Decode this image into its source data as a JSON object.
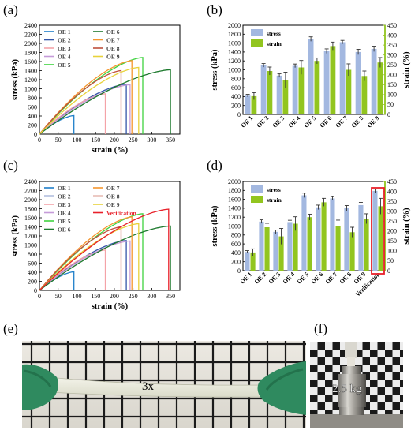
{
  "panels": {
    "a": "(a)",
    "b": "(b)",
    "c": "(c)",
    "d": "(d)",
    "e": "(e)",
    "f": "(f)"
  },
  "photo_e": {
    "label": "3x"
  },
  "photo_f": {
    "label": "2.5 kg"
  },
  "chart_data": [
    {
      "type": "line",
      "panel": "(a)",
      "xlabel": "strain (%)",
      "ylabel": "stress (kPa)",
      "xlim": [
        0,
        375
      ],
      "ylim": [
        0,
        2400
      ],
      "xticks": [
        0,
        50,
        100,
        150,
        200,
        250,
        300,
        350
      ],
      "yticks": [
        0,
        200,
        400,
        600,
        800,
        1000,
        1200,
        1400,
        1600,
        1800,
        2000,
        2200,
        2400
      ],
      "legend_position": "top-left",
      "series": [
        {
          "name": "OE 1",
          "color": "#1f7fc9",
          "break_strain": 92,
          "peak_stress": 410
        },
        {
          "name": "OE 2",
          "color": "#3355a8",
          "break_strain": 232,
          "peak_stress": 1100
        },
        {
          "name": "OE 3",
          "color": "#f4a3a8",
          "break_strain": 176,
          "peak_stress": 890
        },
        {
          "name": "OE 4",
          "color": "#c59bd9",
          "break_strain": 242,
          "peak_stress": 1090
        },
        {
          "name": "OE 5",
          "color": "#3fd33f",
          "break_strain": 276,
          "peak_stress": 1690
        },
        {
          "name": "OE 6",
          "color": "#1e7a2e",
          "break_strain": 350,
          "peak_stress": 1420
        },
        {
          "name": "OE 7",
          "color": "#f5962e",
          "break_strain": 247,
          "peak_stress": 1620
        },
        {
          "name": "OE 8",
          "color": "#c0503c",
          "break_strain": 218,
          "peak_stress": 1400
        },
        {
          "name": "OE 9",
          "color": "#e8d23a",
          "break_strain": 265,
          "peak_stress": 1470
        }
      ]
    },
    {
      "type": "bar",
      "panel": "(b)",
      "categories": [
        "OE 1",
        "OE 2",
        "OE 3",
        "OE 4",
        "OE 5",
        "OE 6",
        "OE 7",
        "OE 8",
        "OE 9"
      ],
      "ylabel": "stress (kPa)",
      "y2label": "strain (%)",
      "ylim": [
        0,
        2000
      ],
      "y2lim": [
        0,
        450
      ],
      "yticks": [
        0,
        200,
        400,
        600,
        800,
        1000,
        1200,
        1400,
        1600,
        1800,
        2000
      ],
      "y2ticks": [
        0,
        50,
        100,
        150,
        200,
        250,
        300,
        350,
        400,
        450
      ],
      "legend_position": "top-left",
      "series": [
        {
          "name": "stress",
          "color": "#a3b8e0",
          "axis": "left",
          "values": [
            420,
            1100,
            870,
            1090,
            1690,
            1420,
            1620,
            1400,
            1470
          ],
          "errors": [
            30,
            40,
            40,
            40,
            50,
            50,
            40,
            60,
            60
          ]
        },
        {
          "name": "strain",
          "color": "#92c51f",
          "axis": "right",
          "values": [
            92,
            219,
            173,
            237,
            270,
            345,
            225,
            194,
            262
          ],
          "errors": [
            18,
            20,
            40,
            35,
            15,
            20,
            30,
            25,
            25
          ]
        }
      ]
    },
    {
      "type": "line",
      "panel": "(c)",
      "xlabel": "strain (%)",
      "ylabel": "stress (kPa)",
      "xlim": [
        0,
        375
      ],
      "ylim": [
        0,
        2400
      ],
      "xticks": [
        0,
        50,
        100,
        150,
        200,
        250,
        300,
        350
      ],
      "yticks": [
        0,
        200,
        400,
        600,
        800,
        1000,
        1200,
        1400,
        1600,
        1800,
        2000,
        2200,
        2400
      ],
      "legend_position": "top-left",
      "series": [
        {
          "name": "OE 1",
          "color": "#1f7fc9",
          "break_strain": 92,
          "peak_stress": 410
        },
        {
          "name": "OE 2",
          "color": "#3355a8",
          "break_strain": 232,
          "peak_stress": 1100
        },
        {
          "name": "OE 3",
          "color": "#f4a3a8",
          "break_strain": 176,
          "peak_stress": 890
        },
        {
          "name": "OE 4",
          "color": "#c59bd9",
          "break_strain": 242,
          "peak_stress": 1090
        },
        {
          "name": "OE 5",
          "color": "#3fd33f",
          "break_strain": 276,
          "peak_stress": 1690
        },
        {
          "name": "OE 6",
          "color": "#1e7a2e",
          "break_strain": 350,
          "peak_stress": 1420
        },
        {
          "name": "OE 7",
          "color": "#f5962e",
          "break_strain": 247,
          "peak_stress": 1620
        },
        {
          "name": "OE 8",
          "color": "#c0503c",
          "break_strain": 218,
          "peak_stress": 1400
        },
        {
          "name": "OE 9",
          "color": "#e8d23a",
          "break_strain": 265,
          "peak_stress": 1470
        },
        {
          "name": "Verification",
          "color": "#e8202a",
          "break_strain": 345,
          "peak_stress": 1790
        }
      ]
    },
    {
      "type": "bar",
      "panel": "(d)",
      "categories": [
        "OE 1",
        "OE 2",
        "OE 3",
        "OE 4",
        "OE 5",
        "OE 6",
        "OE 7",
        "OE 8",
        "OE 9",
        "Verification"
      ],
      "ylabel": "stress (kPa)",
      "y2label": "strain (%)",
      "ylim": [
        0,
        2000
      ],
      "y2lim": [
        0,
        450
      ],
      "yticks": [
        0,
        200,
        400,
        600,
        800,
        1000,
        1200,
        1400,
        1600,
        1800,
        2000
      ],
      "y2ticks": [
        0,
        50,
        100,
        150,
        200,
        250,
        300,
        350,
        400,
        450
      ],
      "legend_position": "top-left",
      "highlight": "Verification",
      "series": [
        {
          "name": "stress",
          "color": "#a3b8e0",
          "axis": "left",
          "values": [
            420,
            1100,
            870,
            1090,
            1690,
            1420,
            1620,
            1400,
            1470,
            1790
          ],
          "errors": [
            30,
            40,
            40,
            40,
            50,
            50,
            40,
            60,
            60,
            40
          ]
        },
        {
          "name": "strain",
          "color": "#92c51f",
          "axis": "right",
          "values": [
            92,
            219,
            173,
            237,
            270,
            345,
            225,
            194,
            262,
            325
          ],
          "errors": [
            18,
            20,
            40,
            35,
            15,
            20,
            30,
            25,
            25,
            40
          ]
        }
      ]
    }
  ]
}
